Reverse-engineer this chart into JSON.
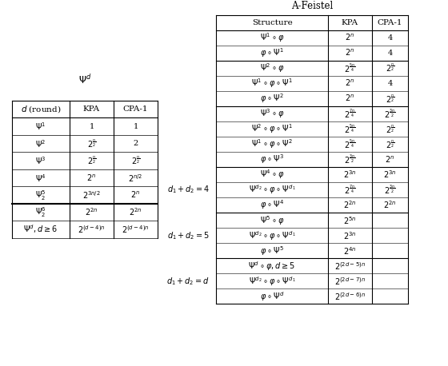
{
  "title_left": "$\\Psi^d$",
  "title_right": "A-Feistel",
  "left_header": [
    "$d$ (round)",
    "KPA",
    "CPA-1"
  ],
  "left_rows": [
    [
      "$\\Psi^1$",
      "1",
      "1"
    ],
    [
      "$\\Psi^2$",
      "$2^{\\frac{n}{2}}$",
      "2"
    ],
    [
      "$\\Psi^3$",
      "$2^{\\frac{n}{2}}$",
      "$2^{\\frac{n}{2}}$"
    ],
    [
      "$\\Psi^4$",
      "$2^n$",
      "$2^{n/2}$"
    ],
    [
      "$\\Psi^5_2$",
      "$2^{3n/2}$",
      "$2^n$"
    ],
    [
      "$\\Psi^6_2$",
      "$2^{2n}$",
      "$2^{2n}$"
    ],
    [
      "$\\Psi^d, d\\geq 6$",
      "$2^{(d-4)n}$",
      "$2^{(d-4)n}$"
    ]
  ],
  "right_header": [
    "Structure",
    "KPA",
    "CPA-1"
  ],
  "right_sections": [
    {
      "label": "",
      "rows": [
        [
          "$\\Psi^1 \\circ \\varphi$",
          "$2^n$",
          "4"
        ],
        [
          "$\\varphi \\circ \\Psi^1$",
          "$2^n$",
          "4"
        ]
      ]
    },
    {
      "label": "",
      "rows": [
        [
          "$\\Psi^2 \\circ \\varphi$",
          "$2^{\\frac{5n}{4}}$",
          "$2^{\\frac{n}{2}}$"
        ],
        [
          "$\\Psi^1 \\circ \\varphi \\circ \\Psi^1$",
          "$2^n$",
          "4"
        ],
        [
          "$\\varphi \\circ \\Psi^2$",
          "$2^n$",
          "$2^{\\frac{n}{2}}$"
        ]
      ]
    },
    {
      "label": "",
      "rows": [
        [
          "$\\Psi^3 \\circ \\varphi$",
          "$2^{\\frac{7n}{4}}$",
          "$2^{\\frac{3n}{2}}$"
        ],
        [
          "$\\Psi^2 \\circ \\varphi \\circ \\Psi^1$",
          "$2^{\\frac{5n}{4}}$",
          "$2^{\\frac{n}{2}}$"
        ],
        [
          "$\\Psi^1 \\circ \\varphi \\circ \\Psi^2$",
          "$2^{\\frac{5n}{4}}$",
          "$2^{\\frac{n}{2}}$"
        ],
        [
          "$\\varphi \\circ \\Psi^3$",
          "$2^{\\frac{3n}{2}}$",
          "$2^n$"
        ]
      ]
    },
    {
      "label": "$d_1 + d_2 = 4$",
      "rows": [
        [
          "$\\Psi^4 \\circ \\varphi$",
          "$2^{3n}$",
          "$2^{3n}$"
        ],
        [
          "$\\Psi^{d_2} \\circ \\varphi \\circ \\Psi^{d_1}$",
          "$2^{\\frac{7n}{4}}$",
          "$2^{\\frac{3n}{2}}$"
        ],
        [
          "$\\varphi \\circ \\Psi^4$",
          "$2^{2n}$",
          "$2^{2n}$"
        ]
      ]
    },
    {
      "label": "$d_1 + d_2 = 5$",
      "rows": [
        [
          "$\\Psi^5 \\circ \\varphi$",
          "$2^{5n}$",
          ""
        ],
        [
          "$\\Psi^{d_2} \\circ \\varphi \\circ \\Psi^{d_1}$",
          "$2^{3n}$",
          ""
        ],
        [
          "$\\varphi \\circ \\Psi^5$",
          "$2^{4n}$",
          ""
        ]
      ]
    },
    {
      "label": "$d_1 + d_2 = d$",
      "rows": [
        [
          "$\\Psi^d \\circ \\varphi, d\\geq 5$",
          "$2^{(2d-5)n}$",
          ""
        ],
        [
          "$\\Psi^{d_2} \\circ \\varphi \\circ \\Psi^{d_1}$",
          "$2^{(2d-7)n}$",
          ""
        ],
        [
          "$\\varphi \\circ \\Psi^d$",
          "$2^{(2d-6)n}$",
          ""
        ]
      ]
    }
  ]
}
